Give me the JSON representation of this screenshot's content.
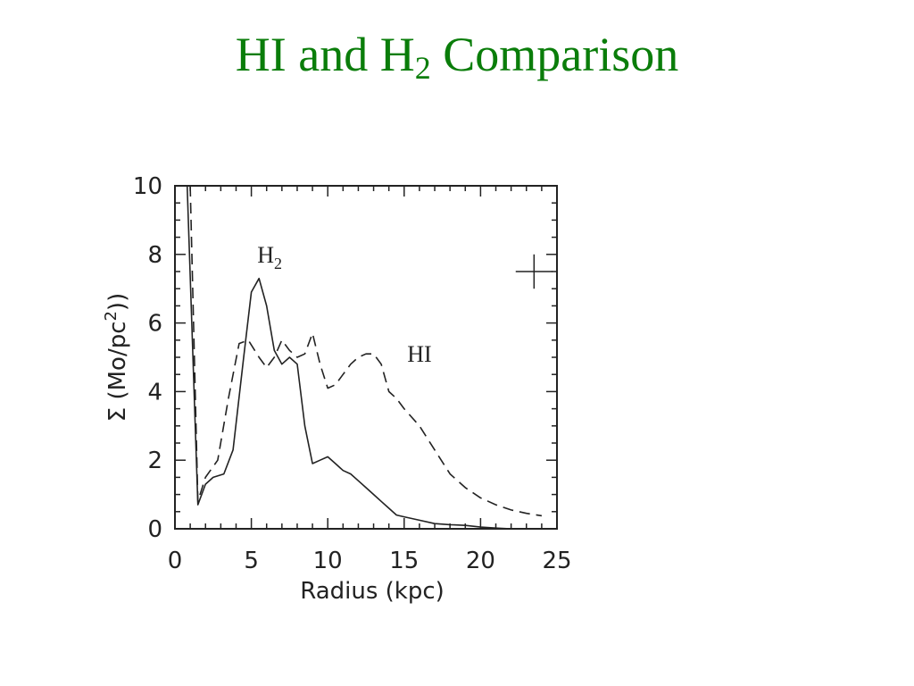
{
  "slide": {
    "title_main": "HI and H",
    "title_sub": "2",
    "title_rest": " Comparison",
    "title_color": "#0a7d0a"
  },
  "chart_data": {
    "type": "line",
    "xlabel": "Radius (kpc)",
    "ylabel_prefix": "Σ (Mo/pc",
    "ylabel_sup": "2",
    "ylabel_suffix": "))",
    "xlim": [
      0,
      25
    ],
    "ylim": [
      0,
      10
    ],
    "x_ticks": [
      "0",
      "5",
      "10",
      "15",
      "20",
      "25"
    ],
    "y_ticks": [
      "0",
      "2",
      "4",
      "6",
      "8",
      "10"
    ],
    "grid": false,
    "error_cross_center": [
      23.5,
      7.5
    ],
    "error_cross_half_width": [
      1.2,
      0.5
    ],
    "series": [
      {
        "label_main": "H",
        "label_sub": "2",
        "label_pos": [
          6.2,
          8.0
        ],
        "style": "solid",
        "x": [
          0.8,
          1.5,
          2.0,
          2.5,
          3.2,
          3.8,
          4.5,
          5.0,
          5.5,
          6.0,
          6.5,
          7.0,
          7.5,
          8.0,
          8.5,
          9.0,
          9.5,
          10.0,
          10.5,
          11.0,
          11.5,
          12.0,
          12.5,
          13.0,
          13.5,
          14.0,
          14.5,
          15.0,
          15.5,
          16.0,
          17.0,
          18.0,
          19.0,
          20.0,
          21.0,
          22.0
        ],
        "y": [
          10.0,
          0.7,
          1.3,
          1.5,
          1.6,
          2.3,
          5.0,
          6.9,
          7.3,
          6.5,
          5.2,
          4.8,
          5.0,
          4.8,
          3.0,
          1.9,
          2.0,
          2.1,
          1.9,
          1.7,
          1.6,
          1.4,
          1.2,
          1.0,
          0.8,
          0.6,
          0.4,
          0.35,
          0.3,
          0.25,
          0.15,
          0.12,
          0.1,
          0.05,
          0.02,
          0.0
        ]
      },
      {
        "label_main": "HI",
        "label_sub": "",
        "label_pos": [
          16.0,
          5.1
        ],
        "style": "dashed",
        "x": [
          1.0,
          1.5,
          2.0,
          2.8,
          3.5,
          4.2,
          4.8,
          5.5,
          6.0,
          6.5,
          7.0,
          7.5,
          8.0,
          8.5,
          9.0,
          9.5,
          10.0,
          10.5,
          11.0,
          11.5,
          12.0,
          12.5,
          13.0,
          13.5,
          14.0,
          14.5,
          15.0,
          16.0,
          17.0,
          18.0,
          19.0,
          20.0,
          21.0,
          22.0,
          23.0,
          24.0
        ],
        "y": [
          10.0,
          0.8,
          1.5,
          2.0,
          3.8,
          5.4,
          5.5,
          5.0,
          4.7,
          5.0,
          5.5,
          5.2,
          5.0,
          5.1,
          5.7,
          4.8,
          4.1,
          4.2,
          4.5,
          4.8,
          5.0,
          5.1,
          5.1,
          4.8,
          4.0,
          3.8,
          3.5,
          3.0,
          2.3,
          1.6,
          1.2,
          0.9,
          0.7,
          0.55,
          0.45,
          0.38
        ]
      }
    ]
  }
}
